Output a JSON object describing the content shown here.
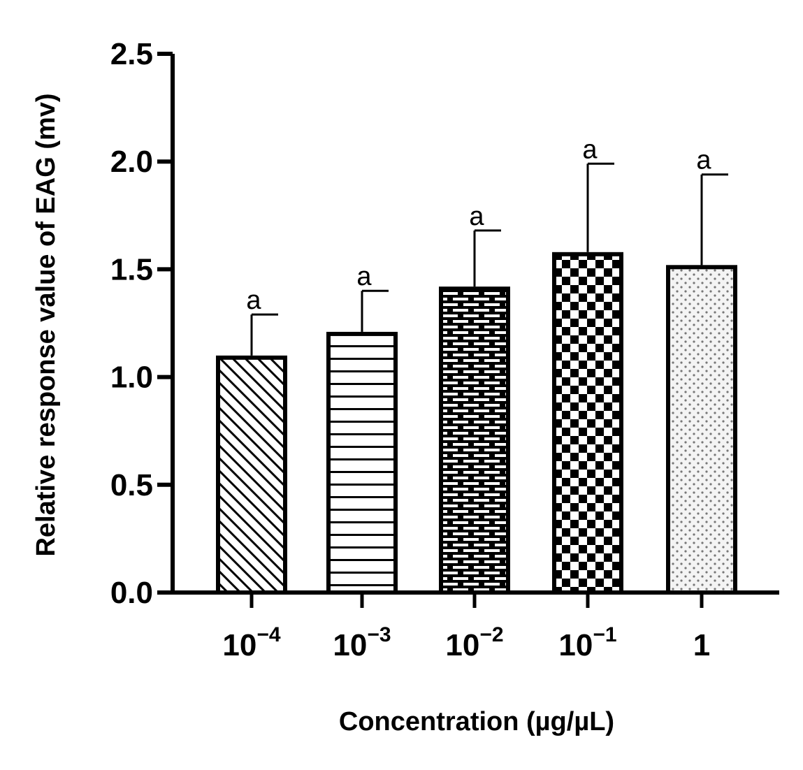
{
  "chart_data": {
    "type": "bar",
    "title": "",
    "xlabel": "Concentration (µg/µL)",
    "ylabel": "Relative response value of EAG (mv)",
    "ylim": [
      0,
      2.5
    ],
    "yticks": [
      0.0,
      0.5,
      1.0,
      1.5,
      2.0,
      2.5
    ],
    "ytick_labels": [
      "0.0",
      "0.5",
      "1.0",
      "1.5",
      "2.0",
      "2.5"
    ],
    "categories": [
      {
        "base": "10",
        "exp": "−4"
      },
      {
        "base": "10",
        "exp": "−3"
      },
      {
        "base": "10",
        "exp": "−2"
      },
      {
        "base": "10",
        "exp": "−1"
      },
      {
        "base": "1",
        "exp": ""
      }
    ],
    "values": [
      1.09,
      1.2,
      1.41,
      1.57,
      1.51
    ],
    "errors": [
      0.2,
      0.2,
      0.27,
      0.42,
      0.43
    ],
    "significance": [
      "a",
      "a",
      "a",
      "a",
      "a"
    ],
    "patterns": [
      "diagonal-hatch",
      "horizontal-lines",
      "brick",
      "checkerboard",
      "dots"
    ],
    "colors": {
      "bar_stroke": "#000000",
      "background": "#ffffff"
    }
  }
}
